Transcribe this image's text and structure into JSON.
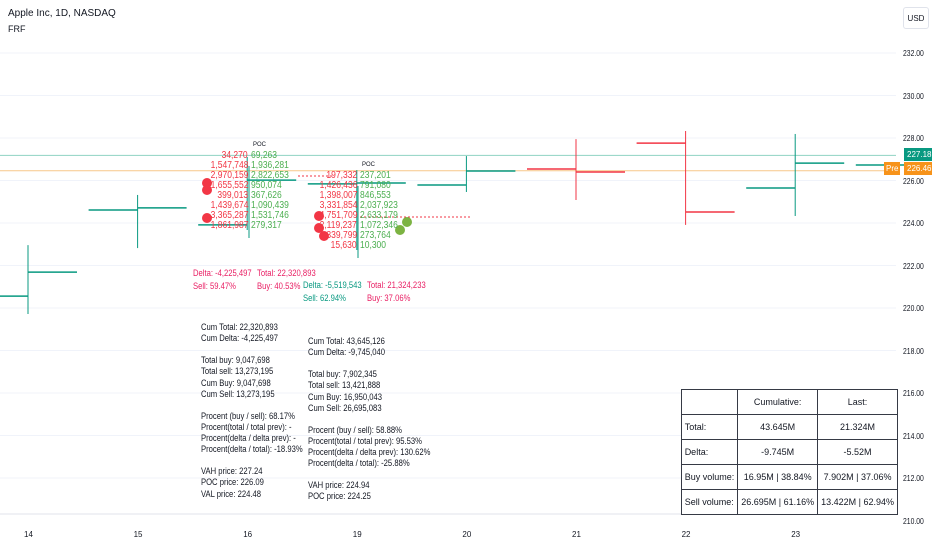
{
  "header": {
    "title": "Apple Inc, 1D, NASDAQ",
    "indicator": "FRF",
    "currency": "USD"
  },
  "colors": {
    "up": "#089981",
    "down": "#f23645",
    "sell": "#f23645",
    "buy": "#4caf50",
    "current": "#089981",
    "pre": "#f7931a"
  },
  "price_axis": {
    "ticks": [
      "232.00",
      "230.00",
      "228.00",
      "226.00",
      "224.00",
      "222.00",
      "220.00",
      "218.00",
      "216.00",
      "214.00",
      "212.00",
      "210.00"
    ],
    "current_price": "227.18",
    "pre_label": "Pre",
    "pre_price": "226.46"
  },
  "time_axis": {
    "ticks": [
      "14",
      "15",
      "16",
      "19",
      "20",
      "21",
      "22",
      "23"
    ]
  },
  "chart_data": {
    "type": "ohlc",
    "bars": [
      {
        "date": "14",
        "o": 220.56,
        "h": 222.96,
        "l": 219.72,
        "c": 221.69
      },
      {
        "date": "15",
        "o": 224.61,
        "h": 225.32,
        "l": 222.82,
        "c": 224.71
      },
      {
        "date": "16",
        "o": 223.91,
        "h": 227.11,
        "l": 223.67,
        "c": 226.02
      },
      {
        "date": "19",
        "o": 225.84,
        "h": 226.49,
        "l": 222.73,
        "c": 225.88
      },
      {
        "date": "20",
        "o": 225.79,
        "h": 227.15,
        "l": 225.46,
        "c": 226.45
      },
      {
        "date": "21",
        "o": 226.54,
        "h": 227.95,
        "l": 225.08,
        "c": 226.4
      },
      {
        "date": "22",
        "o": 227.76,
        "h": 228.33,
        "l": 223.91,
        "c": 224.52
      },
      {
        "date": "23",
        "o": 225.65,
        "h": 228.19,
        "l": 224.33,
        "c": 226.82
      },
      {
        "date": "24",
        "o": 226.73,
        "c": 227.18
      }
    ],
    "ylim": [
      209.6,
      233.5
    ]
  },
  "footprints": [
    {
      "poc": "POC",
      "sell": [
        "34,270",
        "1,547,748",
        "2,970,159",
        "1,655,552",
        "399,013",
        "1,439,674",
        "3,365,287",
        "1,861,987"
      ],
      "buy": [
        "69,263",
        "1,936,281",
        "2,822,653",
        "950,074",
        "367,626",
        "1,090,439",
        "1,531,746",
        "279,317"
      ],
      "delta": "Delta: -4,225,497",
      "total": "Total: 22,320,893",
      "sell_pct": "Sell: 59.47%",
      "buy_pct": "Buy: 40.53%",
      "stats": [
        "Cum Total: 22,320,893",
        "Cum Delta: -4,225,497",
        "",
        " Total buy: 9,047,698",
        "Total sell: 13,273,195",
        " Cum Buy: 9,047,698",
        "Cum Sell: 13,273,195",
        "",
        " Procent (buy / sell): 68.17%",
        "Procent(total / total prev): -",
        "Procent(delta / delta prev): -",
        "Procent(delta / total): -18.93%",
        "",
        " VAH price: 227.24",
        "POC price: 226.09",
        "VAL price: 224.48"
      ]
    },
    {
      "poc": "POC",
      "sell": [
        "197,332",
        "1,426,436",
        "1,398,007",
        "3,331,854",
        "4,751,709",
        "2,119,237",
        "339,799",
        "15,630"
      ],
      "buy": [
        "237,201",
        "791,080",
        "846,553",
        "2,037,923",
        "2,633,179",
        "1,072,346",
        "273,764",
        "10,300"
      ],
      "delta": "Delta: -5,519,543",
      "total": "Total: 21,324,233",
      "sell_pct": "Sell: 62.94%",
      "buy_pct": "Buy: 37.06%",
      "stats": [
        "Cum Total: 43,645,126",
        "Cum Delta: -9,745,040",
        "",
        " Total buy: 7,902,345",
        "Total sell: 13,421,888",
        " Cum Buy: 16,950,043",
        " Cum Sell: 26,695,083",
        "",
        " Procent (buy / sell): 58.88%",
        "Procent(total / total prev): 95.53%",
        "Procent(delta / delta prev): 130.62%",
        "Procent(delta / total): -25.88%",
        "",
        " VAH price: 224.94",
        "POC price: 224.25"
      ]
    }
  ],
  "summary_table": {
    "headers": [
      "",
      "Cumulative:",
      "Last:"
    ],
    "rows": [
      [
        "Total:",
        "43.645M",
        "21.324M"
      ],
      [
        "Delta:",
        "-9.745M",
        "-5.52M"
      ],
      [
        "Buy volume:",
        "16.95M | 38.84%",
        "7.902M | 37.06%"
      ],
      [
        "Sell volume:",
        "26.695M | 61.16%",
        "13.422M | 62.94%"
      ]
    ]
  }
}
